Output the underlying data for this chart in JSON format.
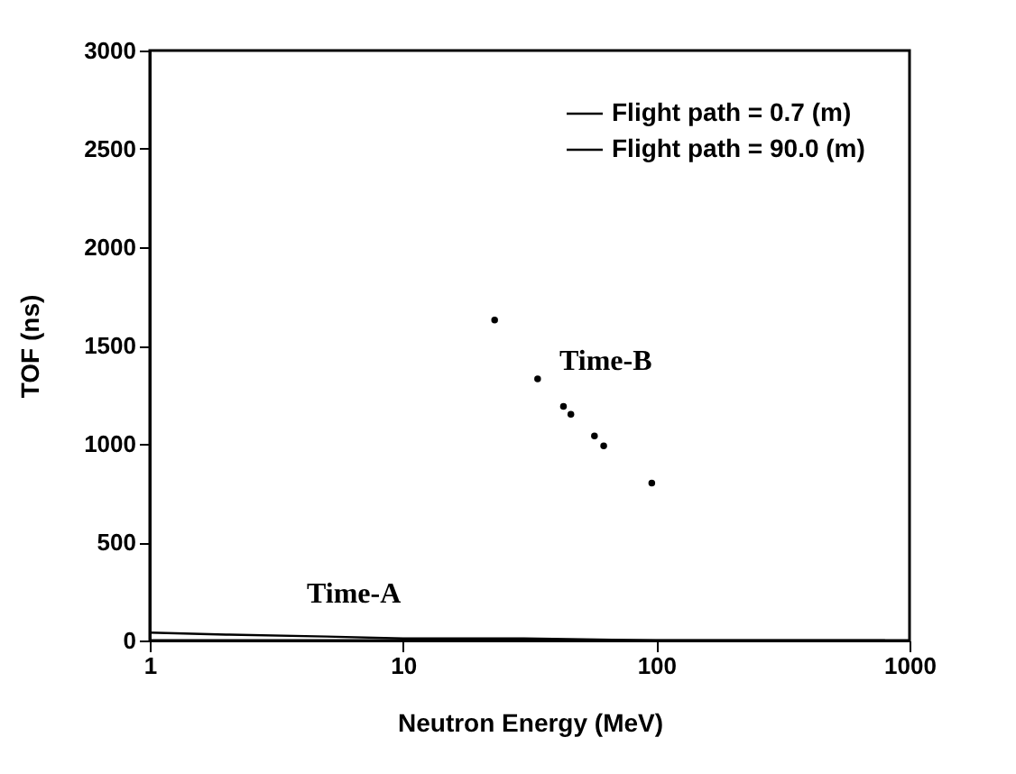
{
  "chart_data": {
    "type": "line",
    "xlabel": "Neutron Energy (MeV)",
    "ylabel": "TOF (ns)",
    "log": "x",
    "xlim": [
      1,
      1000
    ],
    "xticks": [
      1,
      10,
      100,
      1000
    ],
    "ylim": [
      0,
      3000
    ],
    "yticks": [
      0,
      500,
      1000,
      1500,
      2000,
      2500,
      3000
    ],
    "legend": "top right",
    "grid": false,
    "series": [
      {
        "name": "Flight path =   0.7 (m)",
        "color": "#000000",
        "x": [
          1,
          2,
          5,
          10,
          30,
          100,
          300,
          800
        ],
        "values": [
          40,
          30,
          20,
          10,
          10,
          0,
          0,
          0
        ]
      },
      {
        "name": "Flight path = 90.0 (m)",
        "color": "#000000",
        "type": "scatter",
        "x": [
          23,
          34,
          43,
          46,
          57,
          62,
          96
        ],
        "values": [
          1630,
          1330,
          1190,
          1150,
          1040,
          990,
          800
        ]
      }
    ],
    "annotations": [
      "Time-A",
      "Time-B"
    ]
  }
}
